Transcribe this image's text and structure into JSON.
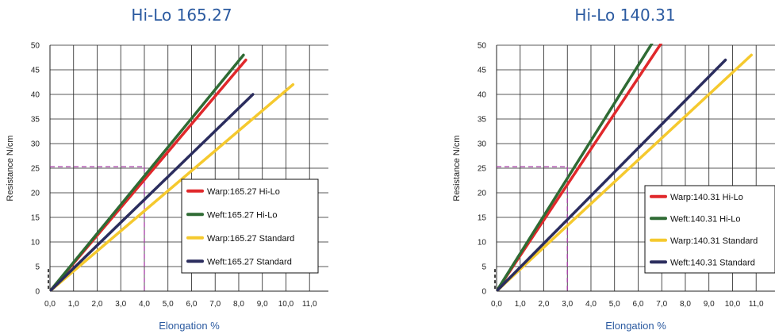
{
  "chart_data": [
    {
      "type": "line",
      "title": "Hi-Lo 165.27",
      "xlabel": "Elongation %",
      "ylabel": "Resistance N/cm",
      "xlim": [
        0,
        11.8
      ],
      "ylim": [
        0,
        50
      ],
      "x_ticks": [
        "0,0",
        "1,0",
        "2,0",
        "3,0",
        "4,0",
        "5,0",
        "6,0",
        "7,0",
        "8,0",
        "9,0",
        "10,0",
        "11,0"
      ],
      "y_ticks": [
        "0",
        "5",
        "10",
        "15",
        "20",
        "25",
        "30",
        "35",
        "40",
        "45",
        "50"
      ],
      "grid": true,
      "legend": "bottom-right",
      "reference": {
        "x": 4.0,
        "y": 25.3
      },
      "series": [
        {
          "name": "Warp:165.27 Hi-Lo",
          "color": "#e0282b",
          "x": [
            0,
            8.3
          ],
          "y": [
            0,
            47
          ]
        },
        {
          "name": "Weft:165.27 Hi-Lo",
          "color": "#2f6b34",
          "x": [
            0,
            8.2
          ],
          "y": [
            0,
            48
          ]
        },
        {
          "name": "Warp:165.27 Standard",
          "color": "#f5c92e",
          "x": [
            0,
            10.3
          ],
          "y": [
            0,
            42
          ]
        },
        {
          "name": "Weft:165.27 Standard",
          "color": "#2b2d5e",
          "x": [
            0,
            8.6
          ],
          "y": [
            0,
            40
          ]
        }
      ]
    },
    {
      "type": "line",
      "title": "Hi-Lo 140.31",
      "xlabel": "Elongation %",
      "ylabel": "Resistance N/cm",
      "xlim": [
        0,
        11.8
      ],
      "ylim": [
        0,
        50
      ],
      "x_ticks": [
        "0,0",
        "1,0",
        "2,0",
        "3,0",
        "4,0",
        "5,0",
        "6,0",
        "7,0",
        "8,0",
        "9,0",
        "10,0",
        "11,0"
      ],
      "y_ticks": [
        "0",
        "5",
        "10",
        "15",
        "20",
        "25",
        "30",
        "35",
        "40",
        "45",
        "50"
      ],
      "grid": true,
      "legend": "bottom-right",
      "reference": {
        "x": 3.0,
        "y": 25.3
      },
      "series": [
        {
          "name": "Warp:140.31 Hi-Lo",
          "color": "#e0282b",
          "x": [
            0,
            7.2
          ],
          "y": [
            0,
            52
          ]
        },
        {
          "name": "Weft:140.31 Hi-Lo",
          "color": "#2f6b34",
          "x": [
            0,
            6.8
          ],
          "y": [
            0,
            52
          ]
        },
        {
          "name": "Warp:140.31 Standard",
          "color": "#f5c92e",
          "x": [
            0,
            10.8
          ],
          "y": [
            0,
            48
          ]
        },
        {
          "name": "Weft:140.31 Standard",
          "color": "#2b2d5e",
          "x": [
            0,
            9.7
          ],
          "y": [
            0,
            47
          ]
        }
      ]
    }
  ]
}
